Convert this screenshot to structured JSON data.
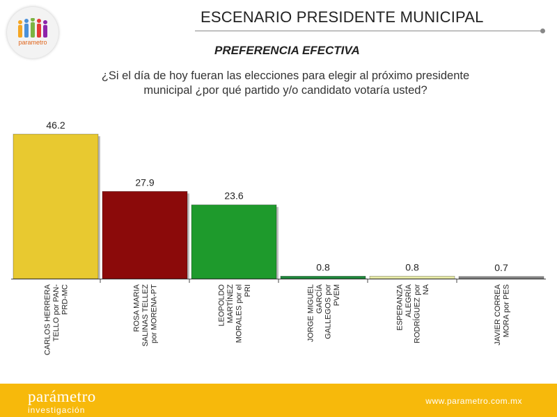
{
  "header": {
    "logo_text": "parametro",
    "title": "ESCENARIO PRESIDENTE MUNICIPAL",
    "subtitle": "PREFERENCIA EFECTIVA",
    "question_line1": "¿Si el día de hoy fueran las elecciones para elegir al próximo presidente",
    "question_line2": "municipal ¿por qué partido y/o candidato votaría usted?"
  },
  "footer": {
    "brand": "parámetro",
    "sub": "investigación",
    "url": "www.parametro.com.mx"
  },
  "chart_data": {
    "type": "bar",
    "categories": [
      [
        "CARLOS HERRERA",
        "TELLO por PAN-",
        "PRD-MC"
      ],
      [
        "ROSA MARIA",
        "SALINAS TELLEZ",
        "por MORENA-PT"
      ],
      [
        "LEOPOLDO",
        "MARTÍNEZ",
        "MORALES por el",
        "PRI"
      ],
      [
        "JORGE MIGUEL",
        "GARCÍA",
        "GALLEGOS por",
        "PVEM"
      ],
      [
        "ESPERANZA",
        "ALEGRÍA",
        "RODRÍGUEZ por",
        "NA"
      ],
      [
        "JAVIER CORREA",
        "MORA por PES"
      ]
    ],
    "values": [
      46.2,
      27.9,
      23.6,
      0.8,
      0.8,
      0.7
    ],
    "value_labels": [
      "46.2",
      "27.9",
      "23.6",
      "0.8",
      "0.8",
      "0.7"
    ],
    "colors": [
      "#e8c930",
      "#8b0a0a",
      "#1e9a2c",
      "#1f8a3c",
      "#e9eca8",
      "#8a8a8a"
    ],
    "ylim": [
      0,
      46.2
    ],
    "grid": false,
    "legend": "none"
  }
}
